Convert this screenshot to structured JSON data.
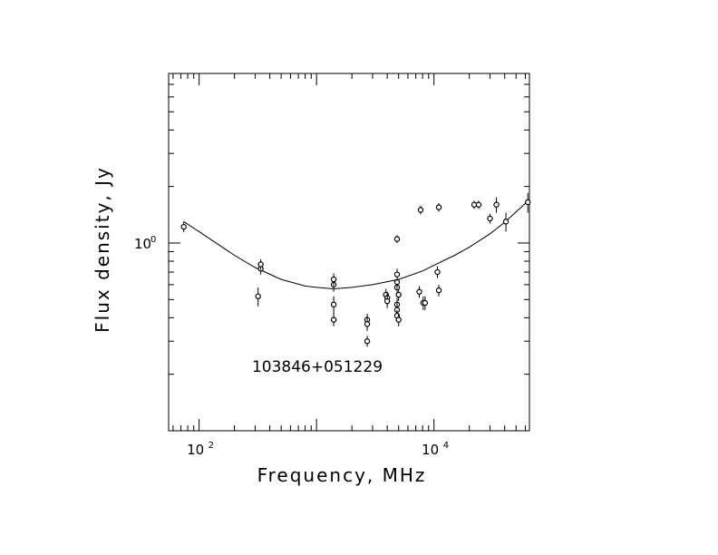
{
  "chart_data": {
    "type": "scatter",
    "title": "",
    "annotation": "103846+051229",
    "xlabel": "Frequency, MHz",
    "ylabel": "Flux density, Jy",
    "x_log": true,
    "y_log": true,
    "xlim": [
      55,
      65000
    ],
    "ylim": [
      0.1,
      8
    ],
    "x_ticks": [
      {
        "value": 100,
        "base": "10",
        "exp": "2"
      },
      {
        "value": 10000,
        "base": "10",
        "exp": "4"
      }
    ],
    "y_ticks": [
      {
        "value": 1,
        "base": "10",
        "exp": "0"
      }
    ],
    "grid": false,
    "legend": "none",
    "series": [
      {
        "kind": "points",
        "points": [
          {
            "x": 74,
            "y": 1.22,
            "err": 0.08
          },
          {
            "x": 318,
            "y": 0.52,
            "err": 0.06
          },
          {
            "x": 335,
            "y": 0.73,
            "err": 0.05
          },
          {
            "x": 335,
            "y": 0.77,
            "err": 0.05
          },
          {
            "x": 1400,
            "y": 0.47,
            "err": 0.05
          },
          {
            "x": 1400,
            "y": 0.6,
            "err": 0.05
          },
          {
            "x": 1400,
            "y": 0.64,
            "err": 0.05
          },
          {
            "x": 1400,
            "y": 0.39,
            "err": 0.03
          },
          {
            "x": 2700,
            "y": 0.39,
            "err": 0.03
          },
          {
            "x": 2700,
            "y": 0.37,
            "err": 0.03
          },
          {
            "x": 2700,
            "y": 0.3,
            "err": 0.02
          },
          {
            "x": 3900,
            "y": 0.53,
            "err": 0.04
          },
          {
            "x": 4000,
            "y": 0.51,
            "err": 0.04
          },
          {
            "x": 4000,
            "y": 0.49,
            "err": 0.04
          },
          {
            "x": 4850,
            "y": 0.58,
            "err": 0.05
          },
          {
            "x": 4850,
            "y": 0.62,
            "err": 0.05
          },
          {
            "x": 4850,
            "y": 0.68,
            "err": 0.05
          },
          {
            "x": 4850,
            "y": 1.05,
            "err": 0.05
          },
          {
            "x": 4850,
            "y": 0.47,
            "err": 0.04
          },
          {
            "x": 4850,
            "y": 0.44,
            "err": 0.04
          },
          {
            "x": 4850,
            "y": 0.41,
            "err": 0.03
          },
          {
            "x": 5000,
            "y": 0.39,
            "err": 0.03
          },
          {
            "x": 5000,
            "y": 0.53,
            "err": 0.04
          },
          {
            "x": 7500,
            "y": 0.55,
            "err": 0.04
          },
          {
            "x": 7700,
            "y": 1.5,
            "err": 0.08
          },
          {
            "x": 8100,
            "y": 0.48,
            "err": 0.04
          },
          {
            "x": 8400,
            "y": 0.48,
            "err": 0.04
          },
          {
            "x": 10700,
            "y": 0.7,
            "err": 0.05
          },
          {
            "x": 11000,
            "y": 1.55,
            "err": 0.08
          },
          {
            "x": 11000,
            "y": 0.56,
            "err": 0.04
          },
          {
            "x": 22000,
            "y": 1.6,
            "err": 0.08
          },
          {
            "x": 24000,
            "y": 1.6,
            "err": 0.08
          },
          {
            "x": 30000,
            "y": 1.35,
            "err": 0.08
          },
          {
            "x": 34000,
            "y": 1.6,
            "err": 0.15
          },
          {
            "x": 41000,
            "y": 1.3,
            "err": 0.15
          },
          {
            "x": 63000,
            "y": 1.65,
            "err": 0.2
          }
        ]
      },
      {
        "kind": "fit",
        "x": [
          74,
          100,
          150,
          200,
          300,
          500,
          800,
          1000,
          1400,
          2000,
          3000,
          5000,
          8000,
          10000,
          15000,
          20000,
          30000,
          40000,
          63000
        ],
        "y": [
          1.3,
          1.15,
          0.97,
          0.86,
          0.74,
          0.64,
          0.59,
          0.58,
          0.57,
          0.58,
          0.6,
          0.64,
          0.71,
          0.76,
          0.86,
          0.95,
          1.12,
          1.29,
          1.67
        ]
      }
    ]
  }
}
